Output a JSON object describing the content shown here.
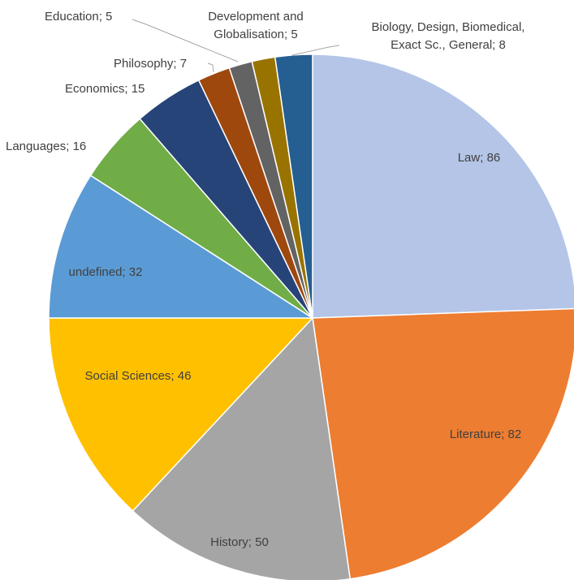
{
  "chart_data": {
    "type": "pie",
    "title": "",
    "start_angle_deg": 0,
    "direction": "clockwise",
    "slices": [
      {
        "name": "Law",
        "value": 86,
        "label": "Law; 86",
        "color": "#B4C5E7"
      },
      {
        "name": "Literature",
        "value": 82,
        "label": "Literature; 82",
        "color": "#ED7D31"
      },
      {
        "name": "History",
        "value": 50,
        "label": "History; 50",
        "color": "#A5A5A5"
      },
      {
        "name": "Social Sciences",
        "value": 46,
        "label": "Social Sciences; 46",
        "color": "#FFC000"
      },
      {
        "name": "undefined",
        "value": 32,
        "label": "undefined; 32",
        "color": "#5B9BD5"
      },
      {
        "name": "Languages",
        "value": 16,
        "label": "Languages; 16",
        "color": "#70AD47"
      },
      {
        "name": "Economics",
        "value": 15,
        "label": "Economics; 15",
        "color": "#264478"
      },
      {
        "name": "Philosophy",
        "value": 7,
        "label": "Philosophy; 7",
        "color": "#9E480E"
      },
      {
        "name": "Education",
        "value": 5,
        "label": "Education; 5",
        "color": "#636363"
      },
      {
        "name": "Development and Globalisation",
        "value": 5,
        "label": [
          "Development and",
          "Globalisation; 5"
        ],
        "color": "#997300"
      },
      {
        "name": "Biology, Design, Biomedical, Exact Sc., General",
        "value": 8,
        "label": [
          "Biology, Design, Biomedical,",
          "Exact Sc., General; 8"
        ],
        "color": "#255E91"
      }
    ]
  }
}
